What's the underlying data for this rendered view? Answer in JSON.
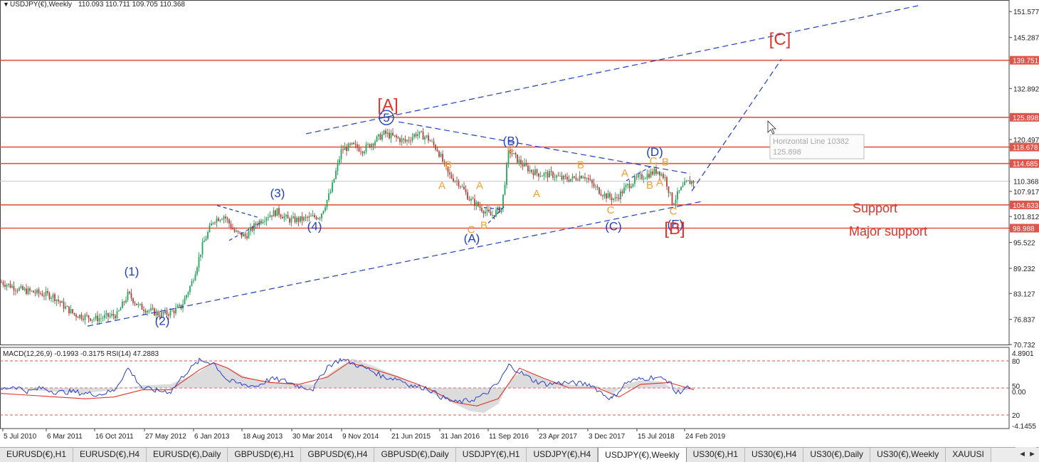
{
  "header": {
    "symbol_text": "USDJPY(€),Weekly",
    "ohlc_text": "110.093 110.711 109.705 110.368"
  },
  "tooltip": {
    "line1": "Horizontal Line 10382",
    "line2": "125.898"
  },
  "chart_data": [
    {
      "type": "candlestick",
      "title": "USDJPY(€),Weekly",
      "ylim": [
        70.732,
        153.0
      ],
      "price_axis_ticks": [
        "151.577",
        "145.287",
        "139.751",
        "132.892",
        "125.898",
        "120.497",
        "118.678",
        "114.685",
        "110.368",
        "107.917",
        "104.633",
        "101.812",
        "98.988",
        "95.522",
        "89.232",
        "83.127",
        "76.837",
        "70.732"
      ],
      "current_price": 110.368,
      "horizontal_lines": [
        {
          "price": 139.751,
          "label": "139.751",
          "color": "#e0554b"
        },
        {
          "price": 125.898,
          "label": "125.898",
          "color": "#e0554b"
        },
        {
          "price": 118.678,
          "label": "118.678",
          "color": "#e0554b"
        },
        {
          "price": 114.685,
          "label": "114.685",
          "color": "#e0554b"
        },
        {
          "price": 104.633,
          "label": "104.633",
          "color": "#e0554b"
        },
        {
          "price": 98.988,
          "label": "98.988",
          "color": "#e0554b"
        }
      ],
      "x_tick_labels": [
        "5 Jul 2010",
        "6 Mar 2011",
        "16 Oct 2011",
        "27 May 2012",
        "6 Jan 2013",
        "18 Aug 2013",
        "30 Mar 2014",
        "9 Nov 2014",
        "21 Jun 2015",
        "31 Jan 2016",
        "11 Sep 2016",
        "23 Apr 2017",
        "3 Dec 2017",
        "15 Jul 2018",
        "24 Feb 2019"
      ],
      "price_path": [
        [
          0,
          86
        ],
        [
          15,
          85
        ],
        [
          30,
          84
        ],
        [
          45,
          83.5
        ],
        [
          60,
          83
        ],
        [
          75,
          82.5
        ],
        [
          90,
          80
        ],
        [
          105,
          78
        ],
        [
          120,
          77.5
        ],
        [
          135,
          77
        ],
        [
          150,
          77.5
        ],
        [
          165,
          78
        ],
        [
          180,
          83
        ],
        [
          195,
          80
        ],
        [
          210,
          79
        ],
        [
          225,
          78
        ],
        [
          240,
          78.5
        ],
        [
          255,
          80
        ],
        [
          270,
          86
        ],
        [
          285,
          95
        ],
        [
          300,
          101
        ],
        [
          315,
          102
        ],
        [
          330,
          98
        ],
        [
          345,
          97
        ],
        [
          360,
          100
        ],
        [
          375,
          102
        ],
        [
          390,
          103
        ],
        [
          405,
          101
        ],
        [
          420,
          101
        ],
        [
          435,
          101.5
        ],
        [
          450,
          102
        ],
        [
          465,
          108
        ],
        [
          480,
          118
        ],
        [
          495,
          119
        ],
        [
          510,
          118
        ],
        [
          525,
          120
        ],
        [
          540,
          122
        ],
        [
          555,
          121
        ],
        [
          570,
          120
        ],
        [
          585,
          122
        ],
        [
          600,
          121
        ],
        [
          615,
          118
        ],
        [
          630,
          112
        ],
        [
          645,
          110
        ],
        [
          660,
          106
        ],
        [
          675,
          104
        ],
        [
          690,
          102
        ],
        [
          705,
          104
        ],
        [
          715,
          118
        ],
        [
          730,
          115
        ],
        [
          745,
          113
        ],
        [
          760,
          112
        ],
        [
          775,
          112
        ],
        [
          790,
          111
        ],
        [
          805,
          111
        ],
        [
          820,
          112
        ],
        [
          835,
          109
        ],
        [
          850,
          107
        ],
        [
          865,
          106
        ],
        [
          880,
          109
        ],
        [
          895,
          111
        ],
        [
          910,
          112
        ],
        [
          925,
          113
        ],
        [
          935,
          111
        ],
        [
          945,
          105
        ],
        [
          955,
          108
        ],
        [
          965,
          110
        ],
        [
          975,
          110.4
        ]
      ],
      "wave_labels": [
        {
          "text": "(1)",
          "x": 185,
          "price": 87.5,
          "color": "#1f3fbf"
        },
        {
          "text": "(2)",
          "x": 228,
          "price": 75.5,
          "color": "#1f3fbf"
        },
        {
          "text": "(3)",
          "x": 390,
          "price": 106.5,
          "color": "#1f3fbf"
        },
        {
          "text": "(4)",
          "x": 442,
          "price": 98.5,
          "color": "#1f3fbf"
        },
        {
          "text": "5",
          "x": 543,
          "price": 124.8,
          "color": "#1f3fbf"
        },
        {
          "text": "(A)",
          "x": 663,
          "price": 95.5,
          "color": "#1f3fbf"
        },
        {
          "text": "(B)",
          "x": 718,
          "price": 119.2,
          "color": "#1f3fbf"
        },
        {
          "text": "(C)",
          "x": 862,
          "price": 98.5,
          "color": "#1f3fbf"
        },
        {
          "text": "(D)",
          "x": 920,
          "price": 116.5,
          "color": "#1f3fbf"
        },
        {
          "text": "(E)",
          "x": 949,
          "price": 99.0,
          "color": "#1f3fbf"
        },
        {
          "text": "[A]",
          "x": 545,
          "price": 127.5,
          "color": "#e0342b"
        },
        {
          "text": "[B]",
          "x": 948,
          "price": 97.5,
          "color": "#e0342b"
        },
        {
          "text": "[C]",
          "x": 1096,
          "price": 143.5,
          "color": "#e0342b"
        },
        {
          "text": "B",
          "x": 630,
          "price": 113.5,
          "color": "#f0a030"
        },
        {
          "text": "A",
          "x": 621,
          "price": 108.5,
          "color": "#f0a030"
        },
        {
          "text": "A",
          "x": 674,
          "price": 108.5,
          "color": "#f0a030"
        },
        {
          "text": "C",
          "x": 662,
          "price": 97.8,
          "color": "#f0a030"
        },
        {
          "text": "B",
          "x": 680,
          "price": 98.8,
          "color": "#f0a030"
        },
        {
          "text": "C",
          "x": 718,
          "price": 117.5,
          "color": "#f0a030"
        },
        {
          "text": "A",
          "x": 754,
          "price": 106.5,
          "color": "#f0a030"
        },
        {
          "text": "B",
          "x": 816,
          "price": 113.5,
          "color": "#f0a030"
        },
        {
          "text": "C",
          "x": 858,
          "price": 102.5,
          "color": "#f0a030"
        },
        {
          "text": "A",
          "x": 878,
          "price": 111.5,
          "color": "#f0a030"
        },
        {
          "text": "B",
          "x": 913,
          "price": 108.6,
          "color": "#f0a030"
        },
        {
          "text": "A",
          "x": 927,
          "price": 109.3,
          "color": "#f0a030"
        },
        {
          "text": "B",
          "x": 935,
          "price": 114.2,
          "color": "#f0a030"
        },
        {
          "text": "C",
          "x": 918,
          "price": 114.5,
          "color": "#f0a030"
        },
        {
          "text": "C",
          "x": 946,
          "price": 102.3,
          "color": "#f0a030"
        }
      ],
      "text_annotations": [
        {
          "text": "Support",
          "x": 1198,
          "price": 102.8,
          "color": "#e0342b"
        },
        {
          "text": "Major support",
          "x": 1193,
          "price": 97.2,
          "color": "#e0342b"
        }
      ],
      "trendlines": [
        {
          "x1": 123,
          "p1": 75.2,
          "x2": 987,
          "p2": 105.5,
          "color": "#1f3fbf",
          "dash": "8,5"
        },
        {
          "x1": 430,
          "p1": 121.9,
          "x2": 1290,
          "p2": 153.0,
          "color": "#1f3fbf",
          "dash": "8,5"
        },
        {
          "x1": 560,
          "p1": 124.8,
          "x2": 970,
          "p2": 112.2,
          "color": "#1f3fbf",
          "dash": "8,5"
        },
        {
          "x1": 972,
          "p1": 108.0,
          "x2": 1098,
          "p2": 140.0,
          "color": "#1f3fbf",
          "dash": "8,5"
        },
        {
          "x1": 305,
          "p1": 104.5,
          "x2": 365,
          "p2": 101.5,
          "color": "#1f3fbf",
          "dash": "5,4"
        },
        {
          "x1": 322,
          "p1": 96.0,
          "x2": 368,
          "p2": 100.5,
          "color": "#1f3fbf",
          "dash": "5,4"
        },
        {
          "x1": 680,
          "p1": 104.0,
          "x2": 706,
          "p2": 103.5,
          "color": "#1f3fbf",
          "dash": "5,4"
        },
        {
          "x1": 686,
          "p1": 100.2,
          "x2": 710,
          "p2": 104.5,
          "color": "#1f3fbf",
          "dash": "5,4"
        },
        {
          "x1": 880,
          "p1": 110.5,
          "x2": 915,
          "p2": 114.0,
          "color": "#1f3fbf",
          "dash": "5,4"
        }
      ]
    },
    {
      "type": "line",
      "title": "MACD(12,26,9) -0.1993 -0.3175  RSI(14) 47.2883",
      "axis_ticks": [
        "4.8901",
        "80",
        "50",
        "0.00",
        "20",
        "-4.1455"
      ],
      "levels": [
        {
          "value": 80,
          "color": "#e0554b"
        },
        {
          "value": 50,
          "color": "#e0554b"
        },
        {
          "value": 20,
          "color": "#e0554b"
        }
      ],
      "ylim": [
        5,
        95
      ],
      "rsi": [
        [
          0,
          48
        ],
        [
          20,
          52
        ],
        [
          40,
          46
        ],
        [
          60,
          50
        ],
        [
          80,
          45
        ],
        [
          100,
          46
        ],
        [
          120,
          44
        ],
        [
          140,
          43
        ],
        [
          160,
          47
        ],
        [
          180,
          72
        ],
        [
          200,
          50
        ],
        [
          220,
          47
        ],
        [
          240,
          46
        ],
        [
          260,
          66
        ],
        [
          280,
          80
        ],
        [
          300,
          78
        ],
        [
          320,
          58
        ],
        [
          340,
          54
        ],
        [
          360,
          52
        ],
        [
          380,
          60
        ],
        [
          400,
          58
        ],
        [
          420,
          52
        ],
        [
          440,
          49
        ],
        [
          460,
          74
        ],
        [
          480,
          82
        ],
        [
          500,
          76
        ],
        [
          520,
          70
        ],
        [
          540,
          62
        ],
        [
          560,
          60
        ],
        [
          580,
          52
        ],
        [
          600,
          50
        ],
        [
          620,
          40
        ],
        [
          640,
          34
        ],
        [
          660,
          36
        ],
        [
          680,
          42
        ],
        [
          700,
          55
        ],
        [
          715,
          75
        ],
        [
          730,
          68
        ],
        [
          750,
          58
        ],
        [
          770,
          54
        ],
        [
          790,
          56
        ],
        [
          810,
          55
        ],
        [
          830,
          54
        ],
        [
          850,
          42
        ],
        [
          860,
          38
        ],
        [
          880,
          56
        ],
        [
          900,
          60
        ],
        [
          920,
          62
        ],
        [
          940,
          58
        ],
        [
          950,
          44
        ],
        [
          960,
          48
        ],
        [
          970,
          51
        ]
      ],
      "signal": [
        [
          0,
          44
        ],
        [
          40,
          42
        ],
        [
          80,
          40
        ],
        [
          120,
          38
        ],
        [
          160,
          40
        ],
        [
          200,
          48
        ],
        [
          240,
          48
        ],
        [
          280,
          70
        ],
        [
          300,
          78
        ],
        [
          320,
          72
        ],
        [
          340,
          62
        ],
        [
          380,
          56
        ],
        [
          420,
          54
        ],
        [
          460,
          62
        ],
        [
          490,
          78
        ],
        [
          520,
          72
        ],
        [
          560,
          62
        ],
        [
          600,
          50
        ],
        [
          640,
          34
        ],
        [
          670,
          30
        ],
        [
          700,
          38
        ],
        [
          730,
          72
        ],
        [
          760,
          62
        ],
        [
          800,
          50
        ],
        [
          840,
          50
        ],
        [
          870,
          40
        ],
        [
          900,
          54
        ],
        [
          940,
          56
        ],
        [
          975,
          48
        ]
      ],
      "histogram": [
        [
          0,
          -0.2
        ],
        [
          40,
          -0.3
        ],
        [
          80,
          -0.6
        ],
        [
          120,
          -0.8
        ],
        [
          160,
          -0.3
        ],
        [
          200,
          0.4
        ],
        [
          240,
          0.6
        ],
        [
          280,
          2.5
        ],
        [
          300,
          4.0
        ],
        [
          320,
          3.2
        ],
        [
          340,
          2.0
        ],
        [
          360,
          1.2
        ],
        [
          400,
          0.8
        ],
        [
          440,
          0.5
        ],
        [
          470,
          2.8
        ],
        [
          495,
          4.6
        ],
        [
          520,
          3.6
        ],
        [
          560,
          1.8
        ],
        [
          600,
          -0.5
        ],
        [
          630,
          -2.0
        ],
        [
          660,
          -3.6
        ],
        [
          680,
          -3.9
        ],
        [
          700,
          -2.5
        ],
        [
          720,
          1.8
        ],
        [
          740,
          2.6
        ],
        [
          770,
          1.2
        ],
        [
          800,
          0.5
        ],
        [
          840,
          0.3
        ],
        [
          860,
          -1.0
        ],
        [
          880,
          0.6
        ],
        [
          900,
          1.2
        ],
        [
          930,
          1.0
        ],
        [
          950,
          -0.5
        ],
        [
          975,
          -0.2
        ]
      ]
    }
  ],
  "tabs": [
    {
      "label": "EURUSD(€),H1",
      "active": false
    },
    {
      "label": "EURUSD(€),H4",
      "active": false
    },
    {
      "label": "EURUSD(€),Daily",
      "active": false
    },
    {
      "label": "GBPUSD(€),H1",
      "active": false
    },
    {
      "label": "GBPUSD(€),H4",
      "active": false
    },
    {
      "label": "GBPUSD(€),Daily",
      "active": false
    },
    {
      "label": "USDJPY(€),H1",
      "active": false
    },
    {
      "label": "USDJPY(€),H4",
      "active": false
    },
    {
      "label": "USDJPY(€),Weekly",
      "active": true
    },
    {
      "label": "US30(€),H1",
      "active": false
    },
    {
      "label": "US30(€),H4",
      "active": false
    },
    {
      "label": "US30(€),Daily",
      "active": false
    },
    {
      "label": "US30(€),Weekly",
      "active": false
    },
    {
      "label": "XAUUSI",
      "active": false
    }
  ],
  "tab_arrows": "◄ ►"
}
